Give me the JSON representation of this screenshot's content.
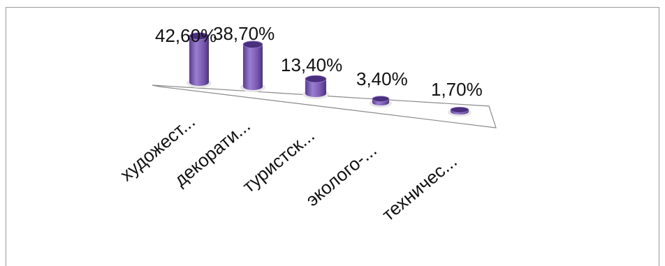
{
  "chart_data": {
    "type": "bar",
    "categories": [
      "художест...",
      "декорати...",
      "туристск...",
      "эколого-...",
      "техничес..."
    ],
    "values": [
      42.6,
      38.7,
      13.4,
      3.4,
      1.7
    ],
    "data_labels": [
      "42,60%",
      "38,70%",
      "13,40%",
      "3,40%",
      "1,70%"
    ],
    "ylim": [
      0,
      45
    ],
    "grid": false,
    "legend": "none",
    "colors": {
      "bar": "#7b5ab3",
      "bar_top": "#4a2f7e",
      "bar_shade": "#5a3c8f",
      "floor": "#ffffff",
      "floor_edge": "#8a8a8a"
    }
  }
}
